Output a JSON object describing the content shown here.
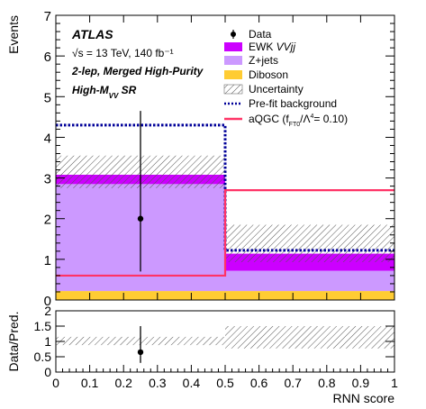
{
  "chart_data": [
    {
      "type": "bar",
      "panel": "main",
      "ylabel": "Events",
      "ylim": [
        0,
        7
      ],
      "xlim": [
        0,
        1
      ],
      "yticks": [
        "0",
        "1",
        "2",
        "3",
        "4",
        "5",
        "6",
        "7"
      ],
      "bin_edges": [
        0,
        0.5,
        1.0
      ],
      "stack": [
        {
          "name": "Diboson",
          "color": "#ffcc33",
          "values": [
            0.22,
            0.22
          ]
        },
        {
          "name": "Z+jets",
          "color": "#cc99ff",
          "values": [
            2.63,
            0.5
          ]
        },
        {
          "name": "EWK VVjj",
          "color": "#cc00ff",
          "values": [
            0.23,
            0.42
          ]
        }
      ],
      "uncertainty": {
        "name": "Uncertainty",
        "low": [
          2.75,
          0.93
        ],
        "high": [
          3.55,
          1.85
        ]
      },
      "prefit_background": {
        "name": "Pre-fit background",
        "color": "#000099",
        "values": [
          4.3,
          1.22
        ]
      },
      "aqgc": {
        "name": "aQGC",
        "color": "#ff3366",
        "values": [
          0.6,
          2.7
        ]
      },
      "data_points": [
        {
          "x": 0.25,
          "y": 2.0,
          "err_low": 1.3,
          "err_high": 2.65
        }
      ],
      "annotations": {
        "atlas": "ATLAS",
        "energy": "√s = 13 TeV, 140 fb⁻¹",
        "channel": "2-lep, Merged High-Purity",
        "region": "High-M",
        "region_sub": "VV",
        "region_suffix": " SR"
      },
      "legend": {
        "placement": "top-right",
        "data": "Data",
        "ewk": "EWK VVjj",
        "zjets": "Z+jets",
        "diboson": "Diboson",
        "unc": "Uncertainty",
        "prefit": "Pre-fit background",
        "aqgc": "aQGC (f_FT0/Λ⁴= 0.10)"
      }
    },
    {
      "type": "scatter",
      "panel": "ratio",
      "ylabel": "Data/Pred.",
      "xlabel": "RNN score",
      "ylim": [
        0,
        2
      ],
      "xlim": [
        0,
        1
      ],
      "yticks": [
        "0",
        "0.5",
        "1",
        "1.5",
        "2"
      ],
      "xticks": [
        "0",
        "0.1",
        "0.2",
        "0.3",
        "0.4",
        "0.5",
        "0.6",
        "0.7",
        "0.8",
        "0.9",
        "1"
      ],
      "uncertainty_band": {
        "low": [
          0.88,
          0.77
        ],
        "high": [
          1.15,
          1.5
        ]
      },
      "data_points": [
        {
          "x": 0.25,
          "y": 0.65,
          "err_low": 0.35,
          "err_high": 0.85
        }
      ]
    }
  ]
}
